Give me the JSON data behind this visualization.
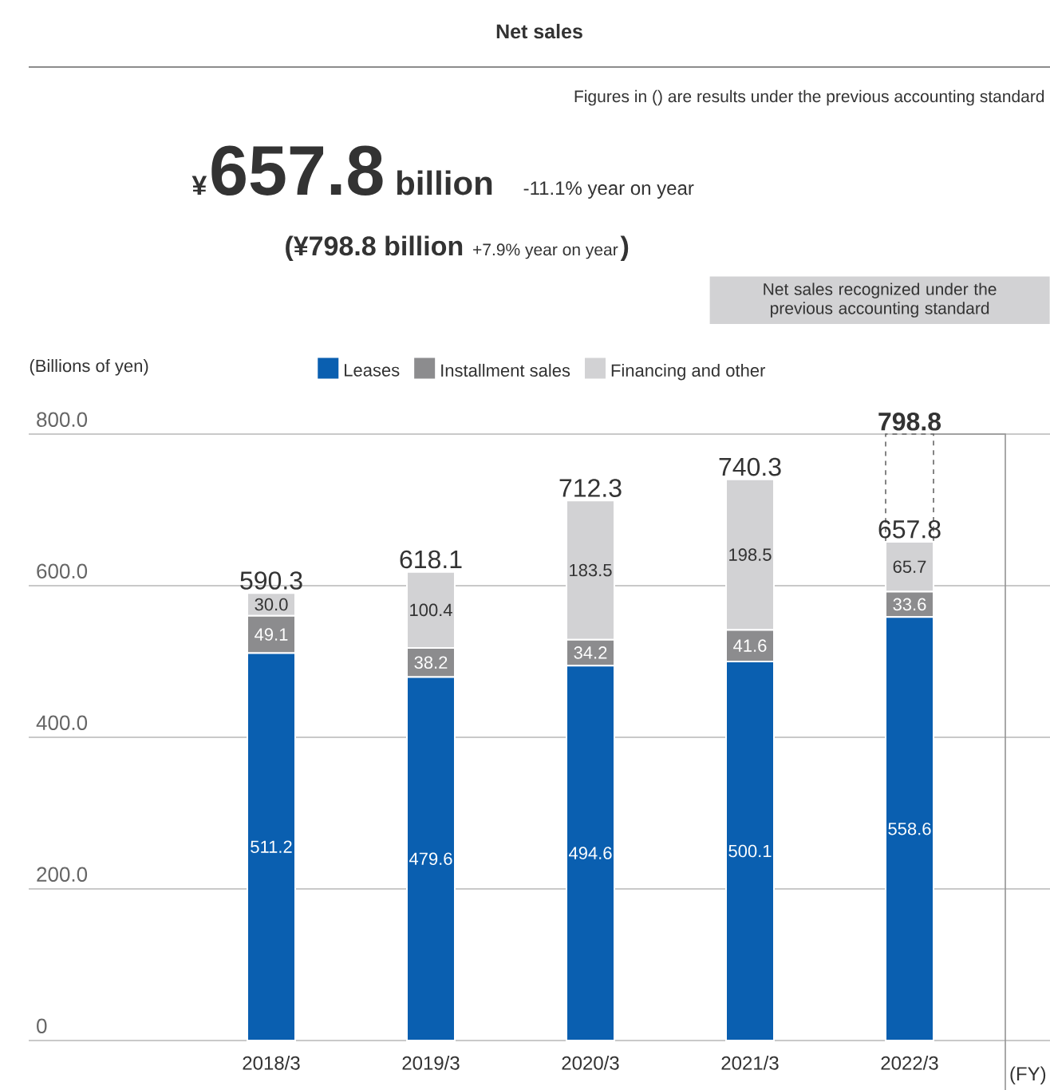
{
  "chart_data": {
    "type": "bar",
    "stacked": true,
    "title": "Net sales",
    "categories": [
      "2018/3",
      "2019/3",
      "2020/3",
      "2021/3",
      "2022/3"
    ],
    "series": [
      {
        "name": "Leases",
        "color": "#0a5fb0",
        "values": [
          511.2,
          479.6,
          494.6,
          500.1,
          558.6
        ],
        "value_labels": [
          "511.2",
          "479.6",
          "494.6",
          "500.1",
          "558.6"
        ]
      },
      {
        "name": "Installment sales",
        "color": "#8c8c8e",
        "values": [
          49.1,
          38.2,
          34.2,
          41.6,
          33.6
        ],
        "value_labels": [
          "49.1",
          "38.2",
          "34.2",
          "41.6",
          "33.6"
        ]
      },
      {
        "name": "Financing and other",
        "color": "#d2d2d4",
        "values": [
          30.0,
          100.4,
          183.5,
          198.5,
          65.7
        ],
        "value_labels": [
          "30.0",
          "100.4",
          "183.5",
          "198.5",
          "65.7"
        ]
      }
    ],
    "totals": [
      "590.3",
      "618.1",
      "712.3",
      "740.3",
      "657.8"
    ],
    "ylabel": "(Billions of yen)",
    "xlabel": "(FY)",
    "ylim": [
      0,
      800
    ],
    "yticks": [
      0,
      {
        "value": 200,
        "label": "200.0"
      },
      {
        "value": 400,
        "label": "400.0"
      },
      {
        "value": 600,
        "label": "600.0"
      },
      {
        "value": 800,
        "label": "800.0"
      }
    ],
    "grid": "y",
    "legend": "top",
    "annotations": [
      "Figures in () are results under the previous accounting standard",
      "¥",
      "657.8",
      "billion",
      "-11.1% year on year",
      "(¥798.8 billion",
      "+7.9% year on year",
      ")",
      "Net sales recognized under the previous accounting standard",
      "798.8"
    ]
  }
}
